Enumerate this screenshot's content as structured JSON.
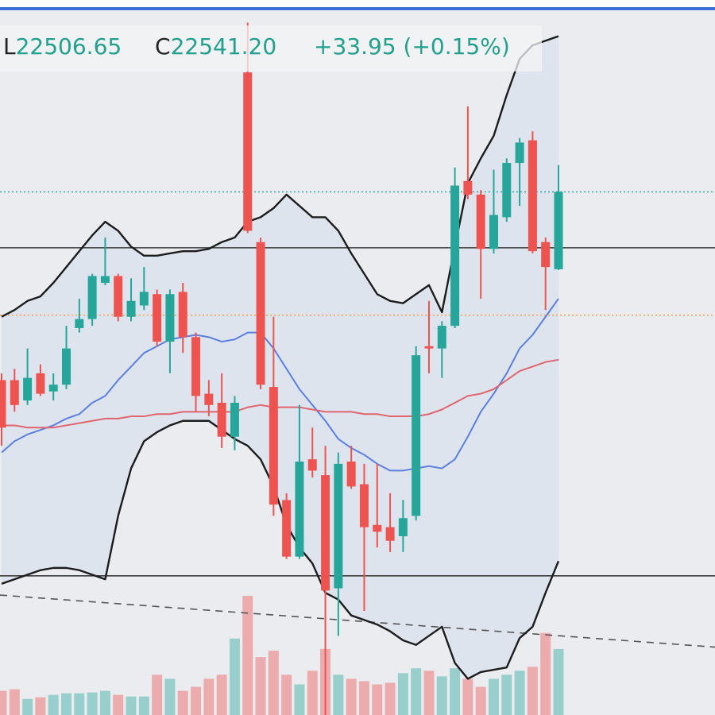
{
  "chart_data": {
    "type": "candlestick",
    "ohlc_legend": {
      "low_label": "L",
      "low": "22506.65",
      "close_label": "C",
      "close": "22541.20",
      "change": "+33.95 (+0.15%)"
    },
    "ylim": [
      22310,
      22626
    ],
    "up_color": "#26a69a",
    "down_color": "#ef5350",
    "open": [
      22458,
      22458,
      22449,
      22461,
      22453,
      22456,
      22481,
      22485,
      22501,
      22504,
      22486,
      22491,
      22496,
      22475,
      22497,
      22477,
      22452,
      22448,
      22433,
      22594,
      22519,
      22455,
      22405,
      22380,
      22423,
      22416,
      22366,
      22422,
      22412,
      22394,
      22393,
      22389,
      22398,
      22473,
      22472,
      22482,
      22546,
      22540,
      22516,
      22530,
      22554,
      22564,
      22519,
      22507
    ],
    "high": [
      22461,
      22463,
      22472,
      22465,
      22461,
      22482,
      22494,
      22505,
      22521,
      22505,
      22503,
      22508,
      22498,
      22498,
      22501,
      22479,
      22458,
      22461,
      22451,
      22616,
      22521,
      22486,
      22408,
      22447,
      22437,
      22429,
      22426,
      22429,
      22421,
      22421,
      22408,
      22405,
      22473,
      22493,
      22484,
      22552,
      22579,
      22542,
      22551,
      22556,
      22565,
      22568,
      22521,
      22553
    ],
    "low": [
      22429,
      22444,
      22447,
      22451,
      22449,
      22454,
      22479,
      22482,
      22500,
      22484,
      22484,
      22489,
      22473,
      22461,
      22470,
      22444,
      22442,
      22428,
      22427,
      22523,
      22454,
      22398,
      22379,
      22379,
      22415,
      22310,
      22345,
      22410,
      22356,
      22384,
      22382,
      22382,
      22396,
      22461,
      22459,
      22481,
      22538,
      22494,
      22514,
      22528,
      22535,
      22514,
      22489,
      22506.65
    ],
    "close": [
      22437,
      22447,
      22459,
      22452,
      22456,
      22472,
      22485,
      22504,
      22504,
      22486,
      22493,
      22497,
      22475,
      22496,
      22477,
      22451,
      22447,
      22433,
      22448,
      22524,
      22456,
      22403,
      22380,
      22422,
      22418,
      22365,
      22421,
      22411,
      22393,
      22391,
      22387,
      22397,
      22469,
      22472,
      22482,
      22544,
      22540,
      22516,
      22531,
      22554,
      22563,
      22515,
      22508,
      22541.2
    ],
    "volume": [
      30,
      32,
      20,
      22,
      25,
      27,
      27,
      28,
      30,
      25,
      23,
      23,
      50,
      45,
      30,
      35,
      45,
      50,
      95,
      148,
      72,
      80,
      50,
      38,
      55,
      82,
      50,
      45,
      42,
      38,
      40,
      52,
      58,
      55,
      48,
      58,
      45,
      35,
      45,
      50,
      55,
      60,
      102,
      82
    ],
    "series": [
      {
        "name": "upper",
        "color": "#1c1c1c",
        "values": [
          22486,
          22489,
          22493,
          22495,
          22501,
          22508,
          22515,
          22522,
          22528,
          22524,
          22517,
          22513,
          22513,
          22514,
          22515,
          22515,
          22516,
          22519,
          22521,
          22528,
          22530,
          22534,
          22540,
          22535,
          22530,
          22530,
          22524,
          22514,
          22505,
          22496,
          22493,
          22492,
          22496,
          22500,
          22488,
          22517,
          22545,
          22556,
          22566,
          22584,
          22600,
          22606,
          22608,
          22610
        ]
      },
      {
        "name": "lower",
        "color": "#1c1c1c",
        "values": [
          22368,
          22370,
          22372,
          22374,
          22375,
          22375,
          22374,
          22372,
          22370,
          22398,
          22419,
          22431,
          22435,
          22438,
          22440,
          22440,
          22440,
          22436,
          22432,
          22429,
          22423,
          22411,
          22394,
          22384,
          22377,
          22364,
          22361,
          22354,
          22352,
          22350,
          22347,
          22343,
          22341,
          22345,
          22349,
          22333,
          22326,
          22329,
          22330,
          22331,
          22344,
          22349,
          22364,
          22378
        ]
      },
      {
        "name": "basis",
        "color": "#5b7fe0",
        "values": [
          22426,
          22431,
          22434,
          22436,
          22438,
          22441,
          22443,
          22448,
          22451,
          22458,
          22464,
          22470,
          22473,
          22476,
          22477,
          22478,
          22477,
          22475,
          22476,
          22479,
          22479,
          22472,
          22463,
          22454,
          22447,
          22440,
          22432,
          22428,
          22425,
          22421,
          22418,
          22418,
          22419,
          22420,
          22419,
          22423,
          22433,
          22444,
          22452,
          22461,
          22472,
          22478,
          22486,
          22494
        ]
      },
      {
        "name": "ma",
        "color": "#e0656d",
        "values": [
          22438,
          22438,
          22437,
          22437,
          22437,
          22438,
          22439,
          22440,
          22441,
          22441,
          22442,
          22442,
          22443,
          22443,
          22444,
          22444,
          22444,
          22444,
          22444,
          22446,
          22447,
          22446,
          22446,
          22446,
          22445,
          22444,
          22444,
          22444,
          22443,
          22443,
          22442,
          22442,
          22442,
          22443,
          22445,
          22448,
          22451,
          22452,
          22454,
          22458,
          22462,
          22464,
          22466,
          22467
        ]
      }
    ],
    "band_fill": "#dde4ee",
    "levels": [
      {
        "value": 22516.5,
        "color": "#3a3a3a",
        "style": "solid"
      },
      {
        "value": 22371.5,
        "color": "#3a3a3a",
        "style": "solid"
      },
      {
        "value": 22486.7,
        "color": "#f5a04a",
        "style": "dotted"
      }
    ],
    "last_price_color": "#26a69a",
    "trend_line": {
      "values": [
        22363,
        22340
      ],
      "color": "#555555"
    }
  }
}
